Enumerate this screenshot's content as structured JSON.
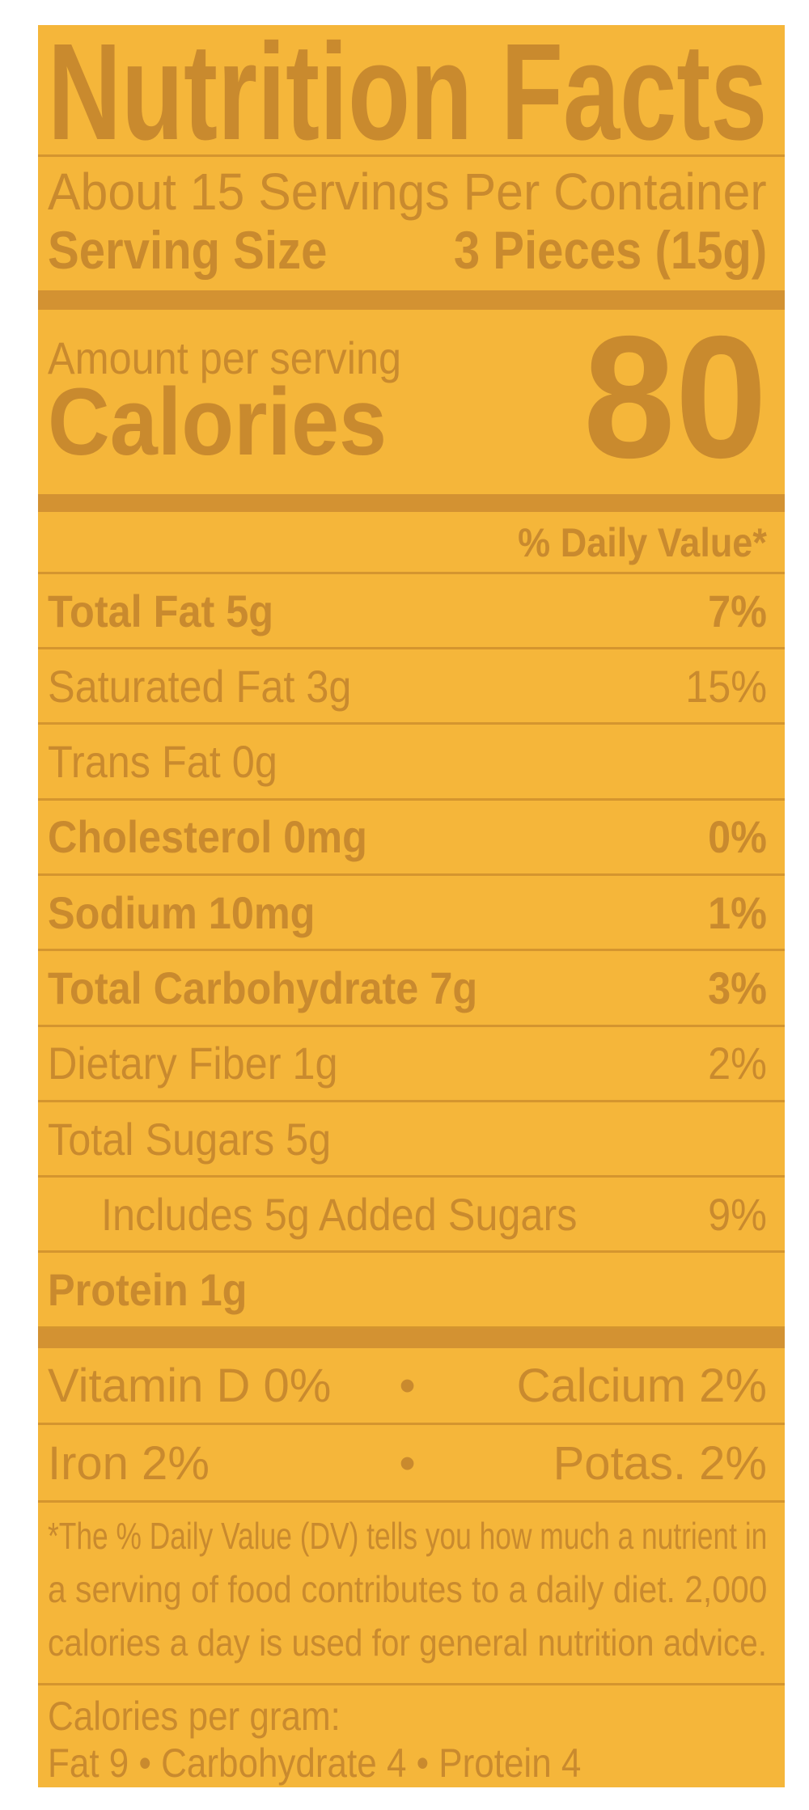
{
  "colors": {
    "background": "#f5b63a",
    "ink": "#c98a2e"
  },
  "title": "Nutrition Facts",
  "servings_per_container": "About 15 Servings Per Container",
  "serving_size": {
    "label": "Serving Size",
    "value": "3 Pieces (15g)"
  },
  "amount_per_serving": "Amount per serving",
  "calories": {
    "label": "Calories",
    "value": "80"
  },
  "daily_value_header": "% Daily Value*",
  "nutrients": [
    {
      "name": "Total Fat 5g",
      "dv": "7%",
      "bold": true,
      "indent": false
    },
    {
      "name": "Saturated Fat 3g",
      "dv": "15%",
      "bold": false,
      "indent": false
    },
    {
      "name": "Trans Fat 0g",
      "dv": "",
      "bold": false,
      "indent": false
    },
    {
      "name": "Cholesterol 0mg",
      "dv": "0%",
      "bold": true,
      "indent": false
    },
    {
      "name": "Sodium 10mg",
      "dv": "1%",
      "bold": true,
      "indent": false
    },
    {
      "name": "Total Carbohydrate 7g",
      "dv": "3%",
      "bold": true,
      "indent": false
    },
    {
      "name": "Dietary Fiber 1g",
      "dv": "2%",
      "bold": false,
      "indent": false
    },
    {
      "name": "Total Sugars 5g",
      "dv": "",
      "bold": false,
      "indent": false
    },
    {
      "name": "Includes 5g Added Sugars",
      "dv": "9%",
      "bold": false,
      "indent": true
    },
    {
      "name": "Protein 1g",
      "dv": "",
      "bold": true,
      "indent": false
    }
  ],
  "micros": [
    {
      "left": "Vitamin D 0%",
      "sep": "•",
      "right": "Calcium 2%"
    },
    {
      "left": "Iron 2%",
      "sep": "•",
      "right": "Potas. 2%"
    }
  ],
  "footnote": [
    "*The % Daily Value (DV) tells you how much a nutrient in",
    "a serving of food contributes to a daily diet. 2,000",
    "calories a day is used for general nutrition advice."
  ],
  "calories_per_gram": {
    "heading": "Calories per gram:",
    "line": "Fat 9  •  Carbohydrate 4  •  Protein 4"
  }
}
